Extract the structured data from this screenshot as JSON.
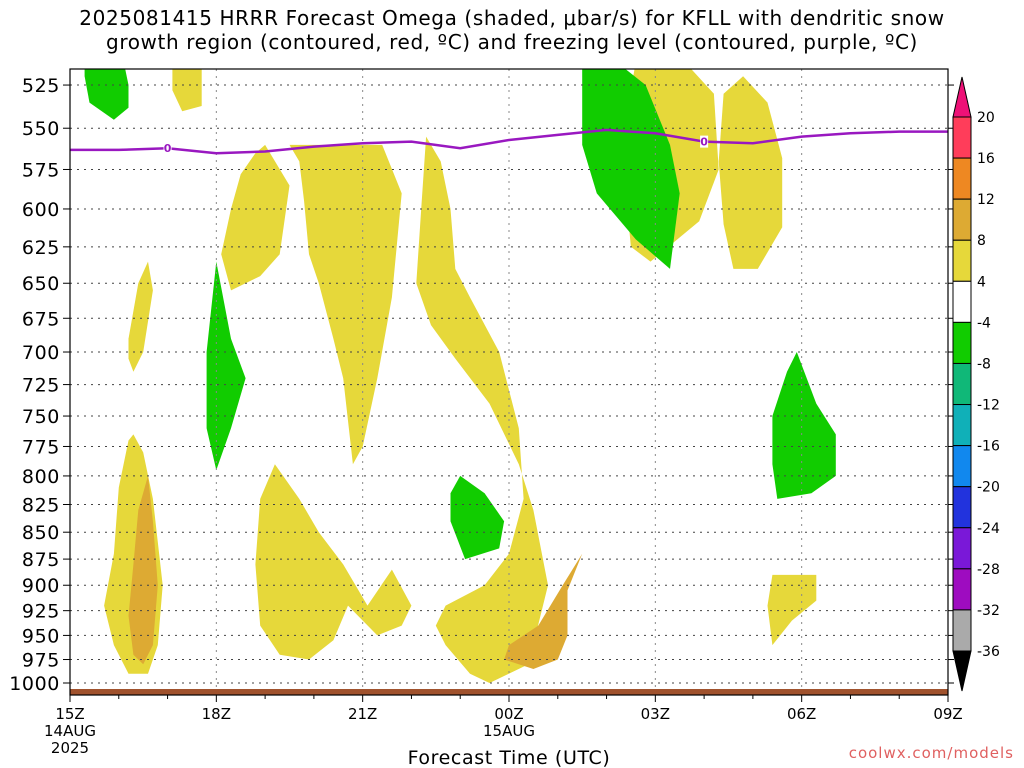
{
  "title": {
    "line1": "2025081415 HRRR Forecast Omega (shaded, μbar/s) for KFLL with dendritic snow",
    "line2": "growth region (contoured, red, ºC) and freezing level (contoured, purple, ºC)"
  },
  "credit": "coolwx.com/models",
  "chart_data": {
    "type": "heatmap",
    "title": "2025081415 HRRR Forecast Omega (shaded, μbar/s) for KFLL with dendritic snow growth region (contoured, red, ºC) and freezing level (contoured, purple, ºC)",
    "xlabel": "Forecast Time (UTC)",
    "ylabel": "",
    "x_ticks": [
      {
        "hour": 0,
        "label": "15Z",
        "sub": [
          "14AUG",
          "2025"
        ]
      },
      {
        "hour": 3,
        "label": "18Z",
        "sub": []
      },
      {
        "hour": 6,
        "label": "21Z",
        "sub": []
      },
      {
        "hour": 9,
        "label": "00Z",
        "sub": [
          "15AUG"
        ]
      },
      {
        "hour": 12,
        "label": "03Z",
        "sub": []
      },
      {
        "hour": 15,
        "label": "06Z",
        "sub": []
      },
      {
        "hour": 18,
        "label": "09Z",
        "sub": []
      }
    ],
    "xlim_hours": [
      0,
      18
    ],
    "y_ticks": [
      525,
      550,
      575,
      600,
      625,
      650,
      675,
      700,
      725,
      750,
      775,
      800,
      825,
      850,
      875,
      900,
      925,
      950,
      975,
      1000
    ],
    "ylim_hpa": [
      516,
      1013
    ],
    "y_scale": "log-pressure",
    "grid": true,
    "colorbar": {
      "labels": [
        "20",
        "16",
        "12",
        "8",
        "4",
        "-4",
        "-8",
        "-12",
        "-16",
        "-20",
        "-24",
        "-28",
        "-32",
        "-36"
      ],
      "colors": [
        "#ff3d5a",
        "#ee8822",
        "#ddaa33",
        "#e6d83a",
        "#ffffff",
        "#11cc00",
        "#10b878",
        "#10b0b8",
        "#1188ee",
        "#2233dd",
        "#7a18d8",
        "#9e0cc0",
        "#aaaaaa"
      ],
      "top_arrow": "#ee1177",
      "bottom_arrow": "#000000"
    },
    "freezing_level": {
      "color": "#9918c0",
      "label": "0",
      "points": [
        [
          0,
          563
        ],
        [
          1,
          563
        ],
        [
          2,
          562
        ],
        [
          3,
          565
        ],
        [
          4,
          564
        ],
        [
          5,
          561
        ],
        [
          6,
          559
        ],
        [
          7,
          558
        ],
        [
          8,
          562
        ],
        [
          9,
          557
        ],
        [
          10,
          554
        ],
        [
          11,
          551
        ],
        [
          12,
          553
        ],
        [
          13,
          558
        ],
        [
          14,
          559
        ],
        [
          15,
          555
        ],
        [
          16,
          553
        ],
        [
          17,
          552
        ],
        [
          18,
          552
        ]
      ],
      "label_hours": [
        2,
        13
      ]
    },
    "omega_regions": [
      {
        "value": 5,
        "color": "#e6d83a",
        "points": [
          [
            2.1,
            512
          ],
          [
            2.7,
            512
          ],
          [
            2.7,
            537
          ],
          [
            2.3,
            540
          ],
          [
            2.1,
            528
          ]
        ]
      },
      {
        "value": 5,
        "color": "#e6d83a",
        "points": [
          [
            11.6,
            512
          ],
          [
            12.6,
            512
          ],
          [
            13.2,
            530
          ],
          [
            13.3,
            575
          ],
          [
            12.9,
            608
          ],
          [
            11.9,
            635
          ],
          [
            11.5,
            625
          ],
          [
            11.3,
            560
          ]
        ]
      },
      {
        "value": 5,
        "color": "#e6d83a",
        "points": [
          [
            13.8,
            520
          ],
          [
            14.3,
            535
          ],
          [
            14.6,
            568
          ],
          [
            14.6,
            612
          ],
          [
            14.1,
            640
          ],
          [
            13.6,
            640
          ],
          [
            13.4,
            610
          ],
          [
            13.3,
            570
          ],
          [
            13.4,
            530
          ]
        ]
      },
      {
        "value": 5,
        "color": "#e6d83a",
        "points": [
          [
            1.2,
            690
          ],
          [
            1.4,
            650
          ],
          [
            1.6,
            635
          ],
          [
            1.7,
            655
          ],
          [
            1.5,
            700
          ],
          [
            1.3,
            715
          ],
          [
            1.2,
            705
          ]
        ]
      },
      {
        "value": 5,
        "color": "#e6d83a",
        "points": [
          [
            3.7,
            560
          ],
          [
            4.5,
            560
          ],
          [
            4.7,
            570
          ],
          [
            4.8,
            595
          ],
          [
            4.9,
            630
          ],
          [
            5.1,
            650
          ],
          [
            5.4,
            690
          ],
          [
            5.6,
            720
          ],
          [
            5.8,
            790
          ],
          [
            6.0,
            775
          ],
          [
            6.3,
            720
          ],
          [
            6.6,
            660
          ],
          [
            6.8,
            590
          ],
          [
            6.4,
            560
          ],
          [
            5.7,
            560
          ],
          [
            5.0,
            560
          ]
        ]
      },
      {
        "value": 5,
        "color": "#e6d83a",
        "points": [
          [
            3.3,
            655
          ],
          [
            3.1,
            630
          ],
          [
            3.3,
            600
          ],
          [
            3.5,
            578
          ],
          [
            3.8,
            565
          ],
          [
            4.0,
            560
          ],
          [
            4.5,
            585
          ],
          [
            4.3,
            630
          ],
          [
            3.9,
            645
          ]
        ]
      },
      {
        "value": 5,
        "color": "#e6d83a",
        "points": [
          [
            7.3,
            555
          ],
          [
            7.2,
            600
          ],
          [
            7.1,
            650
          ],
          [
            7.4,
            680
          ],
          [
            7.9,
            705
          ],
          [
            8.6,
            740
          ],
          [
            9.2,
            790
          ],
          [
            9.5,
            830
          ],
          [
            9.8,
            900
          ],
          [
            9.4,
            980
          ],
          [
            8.6,
            1000
          ],
          [
            8.2,
            990
          ],
          [
            7.7,
            960
          ],
          [
            7.5,
            940
          ],
          [
            7.7,
            920
          ],
          [
            8.5,
            900
          ],
          [
            9.0,
            870
          ],
          [
            9.3,
            820
          ],
          [
            9.2,
            760
          ],
          [
            8.8,
            700
          ],
          [
            8.2,
            660
          ],
          [
            7.9,
            640
          ],
          [
            7.8,
            600
          ],
          [
            7.6,
            570
          ]
        ]
      },
      {
        "value": 5,
        "color": "#e6d83a",
        "points": [
          [
            1.2,
            770
          ],
          [
            1.0,
            810
          ],
          [
            0.9,
            870
          ],
          [
            0.7,
            920
          ],
          [
            0.9,
            960
          ],
          [
            1.2,
            990
          ],
          [
            1.6,
            990
          ],
          [
            1.8,
            960
          ],
          [
            1.9,
            900
          ],
          [
            1.7,
            820
          ],
          [
            1.5,
            780
          ],
          [
            1.3,
            765
          ]
        ]
      },
      {
        "value": 5,
        "color": "#e6d83a",
        "points": [
          [
            4.2,
            790
          ],
          [
            3.9,
            820
          ],
          [
            3.8,
            880
          ],
          [
            3.9,
            940
          ],
          [
            4.3,
            970
          ],
          [
            4.9,
            975
          ],
          [
            5.4,
            955
          ],
          [
            5.7,
            920
          ],
          [
            6.3,
            950
          ],
          [
            6.8,
            940
          ],
          [
            7.0,
            920
          ],
          [
            6.6,
            885
          ],
          [
            6.1,
            920
          ],
          [
            5.6,
            880
          ],
          [
            5.1,
            850
          ],
          [
            4.7,
            820
          ]
        ]
      },
      {
        "value": 5,
        "color": "#e6d83a",
        "points": [
          [
            14.4,
            890
          ],
          [
            15.3,
            890
          ],
          [
            15.3,
            915
          ],
          [
            14.8,
            935
          ],
          [
            14.4,
            960
          ],
          [
            14.3,
            920
          ]
        ]
      },
      {
        "value": 10,
        "color": "#ddaa33",
        "points": [
          [
            1.6,
            800
          ],
          [
            1.4,
            830
          ],
          [
            1.3,
            880
          ],
          [
            1.2,
            930
          ],
          [
            1.3,
            970
          ],
          [
            1.5,
            980
          ],
          [
            1.7,
            960
          ],
          [
            1.8,
            900
          ],
          [
            1.7,
            840
          ]
        ]
      },
      {
        "value": 10,
        "color": "#ddaa33",
        "points": [
          [
            10.5,
            870
          ],
          [
            10.1,
            900
          ],
          [
            9.6,
            940
          ],
          [
            9.0,
            960
          ],
          [
            8.9,
            975
          ],
          [
            9.5,
            985
          ],
          [
            10.0,
            975
          ],
          [
            10.2,
            950
          ],
          [
            10.2,
            905
          ]
        ]
      },
      {
        "value": -6,
        "color": "#11cc00",
        "points": [
          [
            0.3,
            512
          ],
          [
            1.1,
            512
          ],
          [
            1.2,
            525
          ],
          [
            1.2,
            538
          ],
          [
            0.9,
            545
          ],
          [
            0.4,
            535
          ],
          [
            0.3,
            520
          ]
        ]
      },
      {
        "value": -6,
        "color": "#11cc00",
        "points": [
          [
            10.5,
            512
          ],
          [
            11.2,
            512
          ],
          [
            11.8,
            525
          ],
          [
            12.3,
            560
          ],
          [
            12.5,
            590
          ],
          [
            12.3,
            640
          ],
          [
            11.6,
            620
          ],
          [
            10.8,
            590
          ],
          [
            10.5,
            560
          ]
        ]
      },
      {
        "value": -6,
        "color": "#11cc00",
        "points": [
          [
            3.0,
            635
          ],
          [
            3.3,
            690
          ],
          [
            3.6,
            720
          ],
          [
            3.3,
            760
          ],
          [
            3.0,
            795
          ],
          [
            2.8,
            760
          ],
          [
            2.8,
            700
          ]
        ]
      },
      {
        "value": -6,
        "color": "#11cc00",
        "points": [
          [
            14.9,
            700
          ],
          [
            15.3,
            740
          ],
          [
            15.7,
            765
          ],
          [
            15.7,
            800
          ],
          [
            15.2,
            815
          ],
          [
            14.5,
            820
          ],
          [
            14.4,
            790
          ],
          [
            14.4,
            750
          ],
          [
            14.7,
            715
          ]
        ]
      },
      {
        "value": -6,
        "color": "#11cc00",
        "points": [
          [
            8.0,
            800
          ],
          [
            8.5,
            815
          ],
          [
            8.9,
            840
          ],
          [
            8.8,
            865
          ],
          [
            8.1,
            875
          ],
          [
            7.8,
            840
          ],
          [
            7.8,
            815
          ]
        ]
      }
    ]
  }
}
